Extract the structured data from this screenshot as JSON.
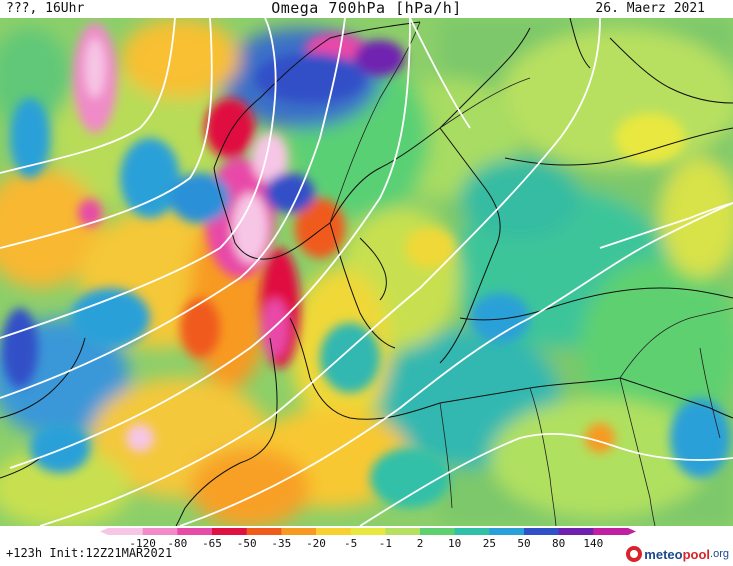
{
  "header": {
    "left": "???, 16Uhr",
    "title": "Omega 700hPa [hPa/h]",
    "right": "26. Maerz 2021"
  },
  "footer": {
    "run_info": "+123h  Init:12Z21MAR2021",
    "brand_main": "meteo",
    "brand_accent": "pool",
    "brand_tld": ".org"
  },
  "legend": {
    "labels": [
      "-120",
      "-80",
      "-65",
      "-50",
      "-35",
      "-20",
      "-5",
      "-1",
      "2",
      "10",
      "25",
      "50",
      "80",
      "140"
    ],
    "colors": [
      "#f7c6e6",
      "#f08ac8",
      "#e84aa8",
      "#e01040",
      "#f05a1a",
      "#f89a20",
      "#f8d030",
      "#e8e840",
      "#b8e060",
      "#5ed070",
      "#30c0a8",
      "#2aa0d8",
      "#3050c8",
      "#7020b0",
      "#c020a0"
    ]
  },
  "map": {
    "field": "Omega 700hPa",
    "unit": "hPa/h",
    "region": "Northern Europe"
  }
}
